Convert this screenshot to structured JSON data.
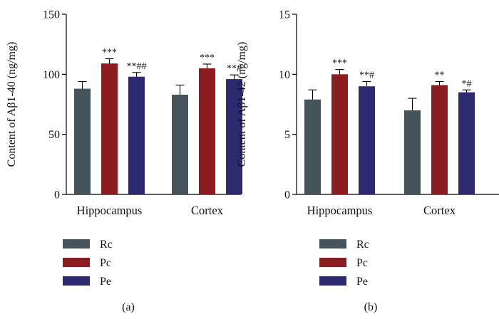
{
  "colors": {
    "Rc": "#44545a",
    "Pc": "#8b1c1f",
    "Pe": "#2e2a72",
    "axis": "#000000"
  },
  "chart_data": [
    {
      "type": "bar",
      "panel_label": "(a)",
      "ylabel": "Content of Aβ1-40 (ng/mg)",
      "ylim": [
        0,
        150
      ],
      "yticks": [
        "0",
        "50",
        "100",
        "150"
      ],
      "categories": [
        "Hippocampus",
        "Cortex"
      ],
      "series": [
        {
          "name": "Rc",
          "values": [
            88,
            83
          ],
          "errors": [
            6,
            8
          ],
          "annotations": [
            "",
            ""
          ]
        },
        {
          "name": "Pc",
          "values": [
            109,
            105
          ],
          "errors": [
            4,
            3.5
          ],
          "annotations": [
            "***",
            "***"
          ]
        },
        {
          "name": "Pe",
          "values": [
            98,
            96
          ],
          "errors": [
            3.5,
            3.5
          ],
          "annotations": [
            "**##",
            "**#"
          ]
        }
      ],
      "legend_placement": "below"
    },
    {
      "type": "bar",
      "panel_label": "(b)",
      "ylabel": "Content of Aβ1-42 (ng/mg)",
      "ylim": [
        0,
        15
      ],
      "yticks": [
        "0",
        "5",
        "10",
        "15"
      ],
      "categories": [
        "Hippocampus",
        "Cortex"
      ],
      "series": [
        {
          "name": "Rc",
          "values": [
            7.9,
            7.0
          ],
          "errors": [
            0.8,
            1.0
          ],
          "annotations": [
            "",
            ""
          ]
        },
        {
          "name": "Pc",
          "values": [
            10.0,
            9.1
          ],
          "errors": [
            0.4,
            0.3
          ],
          "annotations": [
            "***",
            "**"
          ]
        },
        {
          "name": "Pe",
          "values": [
            9.0,
            8.5
          ],
          "errors": [
            0.4,
            0.2
          ],
          "annotations": [
            "**#",
            "*#"
          ]
        }
      ],
      "legend_placement": "below"
    }
  ]
}
